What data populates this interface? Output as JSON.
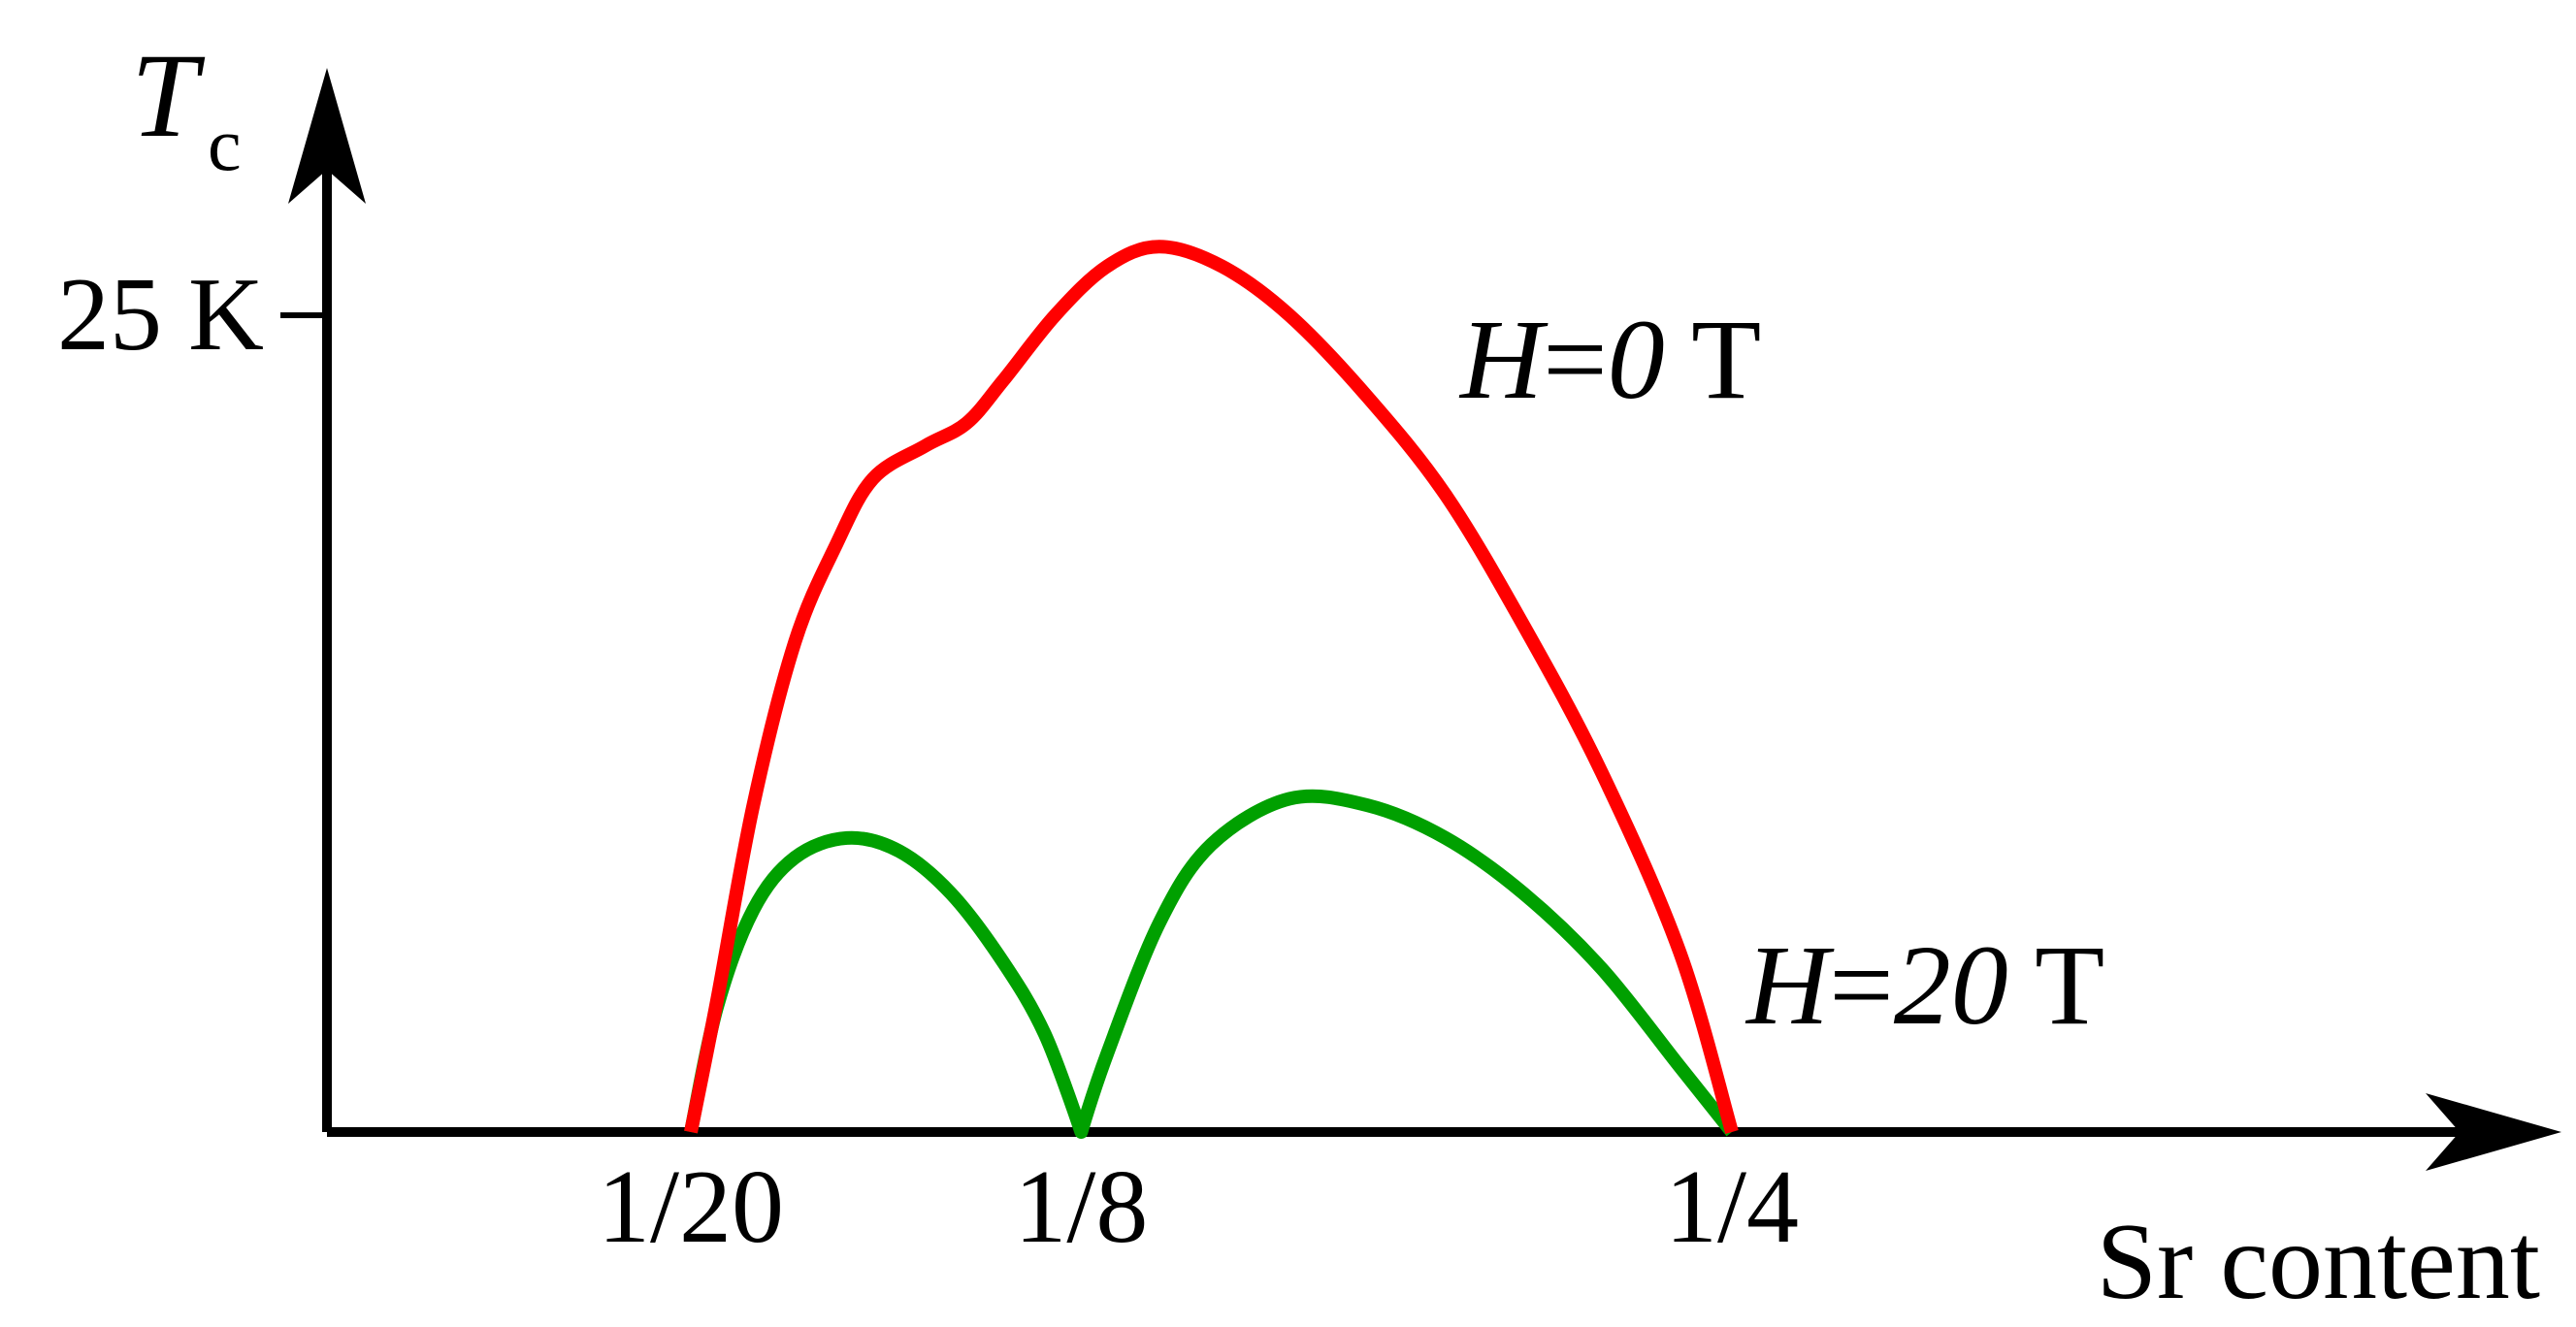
{
  "chart_data": {
    "type": "line",
    "title": "",
    "ylabel": {
      "symbol": "T",
      "subscript": "c"
    },
    "xlabel": "Sr content",
    "yticks": [
      {
        "value": 25,
        "label": "25 K"
      }
    ],
    "xticks": [
      {
        "value": 0.05,
        "label": "1/20"
      },
      {
        "value": 0.125,
        "label": "1/8"
      },
      {
        "value": 0.25,
        "label": "1/4"
      }
    ],
    "xlim": [
      -0.023,
      0.335
    ],
    "ylim": [
      0,
      33
    ],
    "grid": false,
    "series": [
      {
        "name": "H=0 T",
        "label": {
          "italic": "H",
          "mid": "=",
          "italic2": "0",
          "suffix": " T"
        },
        "color": "#ff0000",
        "points": [
          [
            0.05,
            0.0
          ],
          [
            0.055,
            4.0
          ],
          [
            0.062,
            10.0
          ],
          [
            0.07,
            15.0
          ],
          [
            0.078,
            18.0
          ],
          [
            0.085,
            20.0
          ],
          [
            0.095,
            21.0
          ],
          [
            0.103,
            21.7
          ],
          [
            0.11,
            23.0
          ],
          [
            0.12,
            25.0
          ],
          [
            0.13,
            26.5
          ],
          [
            0.14,
            27.1
          ],
          [
            0.152,
            26.5
          ],
          [
            0.165,
            25.0
          ],
          [
            0.18,
            22.5
          ],
          [
            0.195,
            19.5
          ],
          [
            0.21,
            15.5
          ],
          [
            0.225,
            11.0
          ],
          [
            0.24,
            5.5
          ],
          [
            0.25,
            0.0
          ]
        ]
      },
      {
        "name": "H=20 T",
        "label": {
          "italic": "H",
          "mid": "=",
          "italic2": "20",
          "suffix": " T"
        },
        "color": "#00a000",
        "points": [
          [
            0.05,
            0.0
          ],
          [
            0.055,
            3.8
          ],
          [
            0.062,
            6.8
          ],
          [
            0.07,
            8.4
          ],
          [
            0.08,
            9.0
          ],
          [
            0.09,
            8.6
          ],
          [
            0.1,
            7.3
          ],
          [
            0.11,
            5.2
          ],
          [
            0.118,
            3.0
          ],
          [
            0.125,
            0.0
          ],
          [
            0.13,
            2.4
          ],
          [
            0.14,
            6.4
          ],
          [
            0.15,
            8.8
          ],
          [
            0.165,
            10.2
          ],
          [
            0.18,
            10.0
          ],
          [
            0.195,
            9.0
          ],
          [
            0.21,
            7.3
          ],
          [
            0.225,
            5.0
          ],
          [
            0.24,
            2.0
          ],
          [
            0.25,
            0.0
          ]
        ]
      }
    ]
  }
}
